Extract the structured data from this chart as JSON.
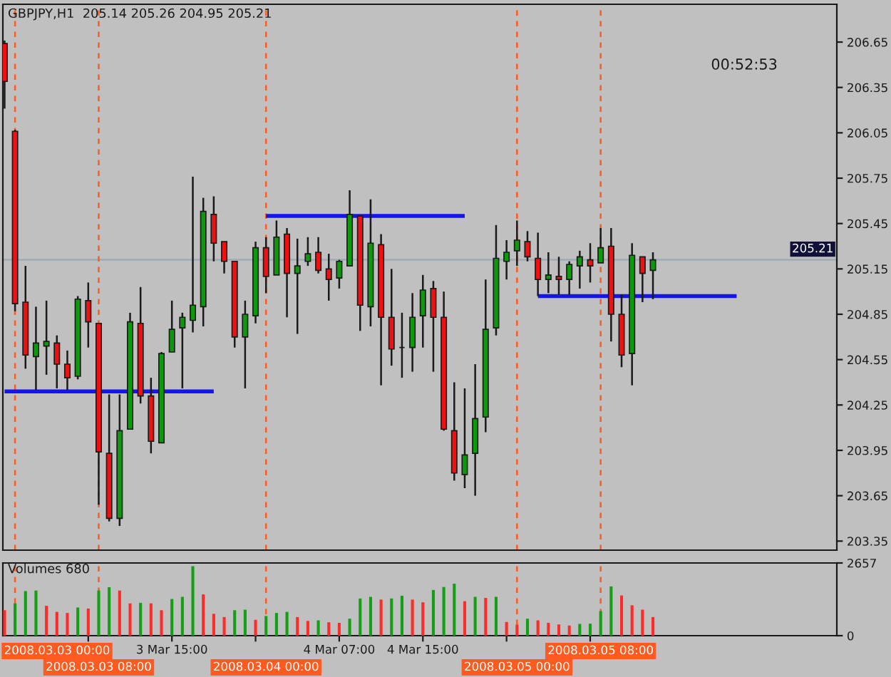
{
  "chart_data": [
    {
      "type": "candlestick",
      "title": "GBPJPY,H1  205.14 205.26 204.95 205.21",
      "annotations": [
        "00:52:53"
      ],
      "x": [
        "2008-03-02T23:00",
        "2008-03-03T00:00",
        "2008-03-03T01:00",
        "2008-03-03T02:00",
        "2008-03-03T03:00",
        "2008-03-03T04:00",
        "2008-03-03T05:00",
        "2008-03-03T06:00",
        "2008-03-03T07:00",
        "2008-03-03T08:00",
        "2008-03-03T09:00",
        "2008-03-03T10:00",
        "2008-03-03T11:00",
        "2008-03-03T12:00",
        "2008-03-03T13:00",
        "2008-03-03T14:00",
        "2008-03-03T15:00",
        "2008-03-03T16:00",
        "2008-03-03T17:00",
        "2008-03-03T18:00",
        "2008-03-03T19:00",
        "2008-03-03T20:00",
        "2008-03-03T21:00",
        "2008-03-03T22:00",
        "2008-03-03T23:00",
        "2008-03-04T00:00",
        "2008-03-04T01:00",
        "2008-03-04T02:00",
        "2008-03-04T03:00",
        "2008-03-04T04:00",
        "2008-03-04T05:00",
        "2008-03-04T06:00",
        "2008-03-04T07:00",
        "2008-03-04T08:00",
        "2008-03-04T09:00",
        "2008-03-04T10:00",
        "2008-03-04T11:00",
        "2008-03-04T12:00",
        "2008-03-04T13:00",
        "2008-03-04T14:00",
        "2008-03-04T15:00",
        "2008-03-04T16:00",
        "2008-03-04T17:00",
        "2008-03-04T18:00",
        "2008-03-04T19:00",
        "2008-03-04T20:00",
        "2008-03-04T21:00",
        "2008-03-04T22:00",
        "2008-03-04T23:00",
        "2008-03-05T00:00",
        "2008-03-05T01:00",
        "2008-03-05T02:00",
        "2008-03-05T03:00",
        "2008-03-05T04:00",
        "2008-03-05T05:00",
        "2008-03-05T06:00",
        "2008-03-05T07:00",
        "2008-03-05T08:00",
        "2008-03-05T09:00",
        "2008-03-05T10:00",
        "2008-03-05T11:00",
        "2008-03-05T12:00",
        "2008-03-05T13:00"
      ],
      "ohlc": [
        [
          206.64,
          206.66,
          206.21,
          206.39
        ],
        [
          206.06,
          206.07,
          204.87,
          204.92
        ],
        [
          204.93,
          205.17,
          204.49,
          204.58
        ],
        [
          204.57,
          204.9,
          204.35,
          204.66
        ],
        [
          204.64,
          204.94,
          204.45,
          204.67
        ],
        [
          204.66,
          204.71,
          204.36,
          204.52
        ],
        [
          204.52,
          204.61,
          204.35,
          204.43
        ],
        [
          204.44,
          204.97,
          204.42,
          204.95
        ],
        [
          204.94,
          205.06,
          204.63,
          204.8
        ],
        [
          204.79,
          204.79,
          203.59,
          203.94
        ],
        [
          203.93,
          204.32,
          203.48,
          203.5
        ],
        [
          203.5,
          204.32,
          203.45,
          204.08
        ],
        [
          204.09,
          204.86,
          204.09,
          204.8
        ],
        [
          204.79,
          205.03,
          204.26,
          204.31
        ],
        [
          204.31,
          204.43,
          203.93,
          204.01
        ],
        [
          204.0,
          204.6,
          204.0,
          204.59
        ],
        [
          204.6,
          204.94,
          204.6,
          204.75
        ],
        [
          204.76,
          204.86,
          204.36,
          204.83
        ],
        [
          204.81,
          205.76,
          204.73,
          204.91
        ],
        [
          204.9,
          205.62,
          204.77,
          205.53
        ],
        [
          205.51,
          205.63,
          205.2,
          205.32
        ],
        [
          205.33,
          205.33,
          205.12,
          205.2
        ],
        [
          205.2,
          205.2,
          204.63,
          204.7
        ],
        [
          204.7,
          204.94,
          204.36,
          204.85
        ],
        [
          204.84,
          205.33,
          204.79,
          205.29
        ],
        [
          205.29,
          205.36,
          204.99,
          205.1
        ],
        [
          205.11,
          205.47,
          205.11,
          205.36
        ],
        [
          205.38,
          205.42,
          204.83,
          205.12
        ],
        [
          205.12,
          205.35,
          204.72,
          205.17
        ],
        [
          205.2,
          205.36,
          205.17,
          205.25
        ],
        [
          205.26,
          205.36,
          205.12,
          205.14
        ],
        [
          205.15,
          205.25,
          204.94,
          205.08
        ],
        [
          205.09,
          205.21,
          205.02,
          205.2
        ],
        [
          205.17,
          205.67,
          205.17,
          205.51
        ],
        [
          205.5,
          205.5,
          204.74,
          204.91
        ],
        [
          204.9,
          205.61,
          204.77,
          205.32
        ],
        [
          205.31,
          205.38,
          204.38,
          204.83
        ],
        [
          204.83,
          205.15,
          204.51,
          204.62
        ],
        [
          204.63,
          204.86,
          204.43,
          204.63
        ],
        [
          204.63,
          204.99,
          204.47,
          204.83
        ],
        [
          204.84,
          205.11,
          204.63,
          205.01
        ],
        [
          205.02,
          205.07,
          204.47,
          204.83
        ],
        [
          204.83,
          205.0,
          204.08,
          204.09
        ],
        [
          204.08,
          204.4,
          203.75,
          203.8
        ],
        [
          203.79,
          204.36,
          203.7,
          203.92
        ],
        [
          203.93,
          204.52,
          203.65,
          204.16
        ],
        [
          204.17,
          205.08,
          204.07,
          204.75
        ],
        [
          204.76,
          205.44,
          204.71,
          205.22
        ],
        [
          205.2,
          205.34,
          205.08,
          205.26
        ],
        [
          205.27,
          205.47,
          205.17,
          205.34
        ],
        [
          205.33,
          205.4,
          205.2,
          205.23
        ],
        [
          205.22,
          205.39,
          204.97,
          205.08
        ],
        [
          205.08,
          205.26,
          204.99,
          205.11
        ],
        [
          205.1,
          205.23,
          204.98,
          205.08
        ],
        [
          205.08,
          205.2,
          204.98,
          205.18
        ],
        [
          205.17,
          205.27,
          205.02,
          205.23
        ],
        [
          205.21,
          205.32,
          205.06,
          205.17
        ],
        [
          205.19,
          205.42,
          205.19,
          205.29
        ],
        [
          205.3,
          205.42,
          204.67,
          204.85
        ],
        [
          204.85,
          204.98,
          204.5,
          204.58
        ],
        [
          204.59,
          205.32,
          204.38,
          205.24
        ],
        [
          205.23,
          205.23,
          204.93,
          205.12
        ],
        [
          205.14,
          205.26,
          204.95,
          205.21
        ]
      ],
      "colors": [
        "#f01010",
        "#f01010",
        "#f01010",
        "#0a9a0a",
        "#0a9a0a",
        "#f01010",
        "#f01010",
        "#0a9a0a",
        "#f01010",
        "#f01010",
        "#f01010",
        "#0a9a0a",
        "#0a9a0a",
        "#f01010",
        "#f01010",
        "#0a9a0a",
        "#0a9a0a",
        "#0a9a0a",
        "#0a9a0a",
        "#0a9a0a",
        "#f01010",
        "#f01010",
        "#f01010",
        "#0a9a0a",
        "#0a9a0a",
        "#f01010",
        "#0a9a0a",
        "#f01010",
        "#0a9a0a",
        "#0a9a0a",
        "#f01010",
        "#f01010",
        "#0a9a0a",
        "#0a9a0a",
        "#f01010",
        "#0a9a0a",
        "#f01010",
        "#f01010",
        "#1a1a1a",
        "#0a9a0a",
        "#0a9a0a",
        "#f01010",
        "#f01010",
        "#f01010",
        "#0a9a0a",
        "#0a9a0a",
        "#0a9a0a",
        "#0a9a0a",
        "#0a9a0a",
        "#0a9a0a",
        "#f01010",
        "#f01010",
        "#0a9a0a",
        "#f01010",
        "#0a9a0a",
        "#0a9a0a",
        "#f01010",
        "#0a9a0a",
        "#f01010",
        "#f01010",
        "#0a9a0a",
        "#f01010",
        "#0a9a0a"
      ],
      "series": [
        {
          "type": "line",
          "x": [
            "2008-03-02T23:00",
            "2008-03-03T19:00"
          ],
          "values": [
            204.34,
            204.34
          ],
          "color": "#1414f0"
        },
        {
          "type": "line",
          "x": [
            "2008-03-04T00:00",
            "2008-03-04T19:00"
          ],
          "values": [
            205.5,
            205.5
          ],
          "color": "#1414f0"
        },
        {
          "type": "line",
          "x": [
            "2008-03-05T02:00",
            "2008-03-05T21:00"
          ],
          "values": [
            204.97,
            204.97
          ],
          "color": "#1414f0"
        }
      ],
      "xlim": [
        "2008-03-02T22:50",
        "2008-03-06T06:35"
      ],
      "ylim": [
        203.29,
        206.9
      ],
      "yticks": [
        203.35,
        203.65,
        203.95,
        204.25,
        204.55,
        204.85,
        205.15,
        205.45,
        205.75,
        206.05,
        206.35,
        206.65
      ],
      "ref_lines": [
        {
          "axis": "y",
          "value": 205.21,
          "label": "205.21",
          "color": "#9eabb6"
        },
        {
          "axis": "x",
          "value": "2008-03-03T00:00",
          "color": "#ff5a1f",
          "line_style": "dashed"
        },
        {
          "axis": "x",
          "value": "2008-03-03T08:00",
          "color": "#ff5a1f",
          "line_style": "dashed"
        },
        {
          "axis": "x",
          "value": "2008-03-04T00:00",
          "color": "#ff5a1f",
          "line_style": "dashed"
        },
        {
          "axis": "x",
          "value": "2008-03-05T00:00",
          "color": "#ff5a1f",
          "line_style": "dashed"
        },
        {
          "axis": "x",
          "value": "2008-03-05T08:00",
          "color": "#ff5a1f",
          "line_style": "dashed"
        }
      ],
      "tick_labels": "y"
    },
    {
      "type": "bar",
      "title": "Volumes 680",
      "x": [
        "2008-03-02T23:00",
        "2008-03-03T00:00",
        "2008-03-03T01:00",
        "2008-03-03T02:00",
        "2008-03-03T03:00",
        "2008-03-03T04:00",
        "2008-03-03T05:00",
        "2008-03-03T06:00",
        "2008-03-03T07:00",
        "2008-03-03T08:00",
        "2008-03-03T09:00",
        "2008-03-03T10:00",
        "2008-03-03T11:00",
        "2008-03-03T12:00",
        "2008-03-03T13:00",
        "2008-03-03T14:00",
        "2008-03-03T15:00",
        "2008-03-03T16:00",
        "2008-03-03T17:00",
        "2008-03-03T18:00",
        "2008-03-03T19:00",
        "2008-03-03T20:00",
        "2008-03-03T21:00",
        "2008-03-03T22:00",
        "2008-03-03T23:00",
        "2008-03-04T00:00",
        "2008-03-04T01:00",
        "2008-03-04T02:00",
        "2008-03-04T03:00",
        "2008-03-04T04:00",
        "2008-03-04T05:00",
        "2008-03-04T06:00",
        "2008-03-04T07:00",
        "2008-03-04T08:00",
        "2008-03-04T09:00",
        "2008-03-04T10:00",
        "2008-03-04T11:00",
        "2008-03-04T12:00",
        "2008-03-04T13:00",
        "2008-03-04T14:00",
        "2008-03-04T15:00",
        "2008-03-04T16:00",
        "2008-03-04T17:00",
        "2008-03-04T18:00",
        "2008-03-04T19:00",
        "2008-03-04T20:00",
        "2008-03-04T21:00",
        "2008-03-04T22:00",
        "2008-03-04T23:00",
        "2008-03-05T00:00",
        "2008-03-05T01:00",
        "2008-03-05T02:00",
        "2008-03-05T03:00",
        "2008-03-05T04:00",
        "2008-03-05T05:00",
        "2008-03-05T06:00",
        "2008-03-05T07:00",
        "2008-03-05T08:00",
        "2008-03-05T09:00",
        "2008-03-05T10:00",
        "2008-03-05T11:00",
        "2008-03-05T12:00",
        "2008-03-05T13:00"
      ],
      "values": [
        930,
        1180,
        1630,
        1650,
        1090,
        870,
        830,
        1030,
        990,
        1650,
        1770,
        1650,
        1180,
        1200,
        1180,
        930,
        1340,
        1420,
        2540,
        1510,
        800,
        680,
        930,
        950,
        580,
        720,
        830,
        870,
        680,
        540,
        560,
        490,
        470,
        620,
        1360,
        1420,
        1320,
        1360,
        1460,
        1320,
        1220,
        1670,
        1780,
        1900,
        1260,
        1420,
        1380,
        1420,
        500,
        400,
        620,
        560,
        470,
        410,
        370,
        430,
        440,
        900,
        1800,
        1470,
        1110,
        950,
        680
      ],
      "colors": [
        "#ff2a2a",
        "#14a014",
        "#14a014",
        "#14a014",
        "#ff2a2a",
        "#ff2a2a",
        "#ff2a2a",
        "#14a014",
        "#ff2a2a",
        "#14a014",
        "#14a014",
        "#ff2a2a",
        "#ff2a2a",
        "#14a014",
        "#ff2a2a",
        "#ff2a2a",
        "#14a014",
        "#14a014",
        "#14a014",
        "#ff2a2a",
        "#ff2a2a",
        "#ff2a2a",
        "#14a014",
        "#14a014",
        "#ff2a2a",
        "#14a014",
        "#14a014",
        "#14a014",
        "#ff2a2a",
        "#ff2a2a",
        "#14a014",
        "#ff2a2a",
        "#ff2a2a",
        "#14a014",
        "#14a014",
        "#14a014",
        "#ff2a2a",
        "#14a014",
        "#14a014",
        "#ff2a2a",
        "#ff2a2a",
        "#14a014",
        "#14a014",
        "#14a014",
        "#ff2a2a",
        "#14a014",
        "#ff2a2a",
        "#14a014",
        "#ff2a2a",
        "#ff2a2a",
        "#14a014",
        "#ff2a2a",
        "#ff2a2a",
        "#ff2a2a",
        "#ff2a2a",
        "#14a014",
        "#14a014",
        "#14a014",
        "#14a014",
        "#ff2a2a",
        "#ff2a2a",
        "#ff2a2a",
        "#ff2a2a"
      ],
      "xlim": [
        "2008-03-02T22:50",
        "2008-03-06T06:35"
      ],
      "ylim": [
        0,
        2657
      ],
      "yticks": [
        0,
        2657
      ],
      "xticks": [
        {
          "value": "2008-03-03T07:00",
          "label": null
        },
        {
          "value": "2008-03-03T15:00",
          "label": "3 Mar 15:00"
        },
        {
          "value": "2008-03-03T23:00",
          "label": null
        },
        {
          "value": "2008-03-04T07:00",
          "label": "4 Mar 07:00"
        },
        {
          "value": "2008-03-04T15:00",
          "label": "4 Mar 15:00"
        },
        {
          "value": "2008-03-04T23:00",
          "label": null
        },
        {
          "value": "2008-03-05T07:00",
          "label": null
        }
      ],
      "ref_lines": [
        {
          "axis": "x",
          "value": "2008-03-03T00:00",
          "label": "2008.03.03 00:00",
          "color": "#ff5a1f",
          "line_style": "dashed"
        },
        {
          "axis": "x",
          "value": "2008-03-03T08:00",
          "label": "2008.03.03 08:00",
          "color": "#ff5a1f",
          "line_style": "dashed"
        },
        {
          "axis": "x",
          "value": "2008-03-04T00:00",
          "label": "2008.03.04 00:00",
          "color": "#ff5a1f",
          "line_style": "dashed"
        },
        {
          "axis": "x",
          "value": "2008-03-05T00:00",
          "label": "2008.03.05 00:00",
          "color": "#ff5a1f",
          "line_style": "dashed"
        },
        {
          "axis": "x",
          "value": "2008-03-05T08:00",
          "label": "2008.03.05 08:00",
          "color": "#ff5a1f",
          "line_style": "dashed"
        }
      ]
    }
  ]
}
